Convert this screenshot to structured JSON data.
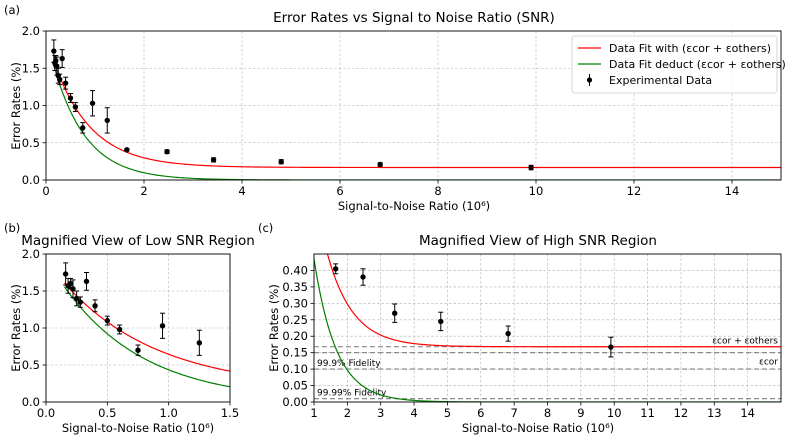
{
  "chart_data": [
    {
      "type": "line",
      "panel_label": "(a)",
      "title": "Error Rates vs Signal to Noise Ratio (SNR)",
      "xlabel": "Signal-to-Noise Ratio (10⁶)",
      "ylabel": "Error Rates (%)",
      "xlim": [
        0,
        15
      ],
      "ylim": [
        0,
        2.0
      ],
      "xticks": [
        0,
        2,
        4,
        6,
        8,
        10,
        12,
        14
      ],
      "xtick_labels": [
        "0",
        "2",
        "4",
        "6",
        "8",
        "10",
        "12",
        "14"
      ],
      "yticks": [
        0.0,
        0.5,
        1.0,
        1.5,
        2.0
      ],
      "ytick_labels": [
        "0.0",
        "0.5",
        "1.0",
        "1.5",
        "2.0"
      ],
      "grid": true,
      "legend_position": "top-right",
      "legend": [
        {
          "label": "Data Fit with (εcor + εothers)",
          "color": "#ff0000",
          "kind": "line"
        },
        {
          "label": "Data Fit deduct (εcor + εothers)",
          "color": "#008000",
          "kind": "line"
        },
        {
          "label": "Experimental Data",
          "color": "#000000",
          "kind": "errorbar"
        }
      ]
    },
    {
      "type": "line",
      "panel_label": "(b)",
      "title": "Magnified View of Low SNR Region",
      "xlabel": "Signal-to-Noise Ratio (10⁶)",
      "ylabel": "Error Rates (%)",
      "xlim": [
        0,
        1.5
      ],
      "ylim": [
        0,
        2.0
      ],
      "xticks": [
        0,
        0.5,
        1.0,
        1.5
      ],
      "xtick_labels": [
        "0.0",
        "0.5",
        "1.0",
        "1.5"
      ],
      "yticks": [
        0.0,
        0.5,
        1.0,
        1.5,
        2.0
      ],
      "ytick_labels": [
        "0.0",
        "0.5",
        "1.0",
        "1.5",
        "2.0"
      ],
      "grid": true
    },
    {
      "type": "line",
      "panel_label": "(c)",
      "title": "Magnified View of High SNR Region",
      "xlabel": "Signal-to-Noise Ratio (10⁶)",
      "ylabel": "Error Rates (%)",
      "xlim": [
        1,
        15
      ],
      "ylim": [
        0,
        0.45
      ],
      "xticks": [
        1,
        2,
        3,
        4,
        5,
        6,
        7,
        8,
        9,
        10,
        11,
        12,
        13,
        14
      ],
      "xtick_labels": [
        "1",
        "2",
        "3",
        "4",
        "5",
        "6",
        "7",
        "8",
        "9",
        "10",
        "11",
        "12",
        "13",
        "14"
      ],
      "yticks": [
        0.0,
        0.05,
        0.1,
        0.15,
        0.2,
        0.25,
        0.3,
        0.35,
        0.4
      ],
      "ytick_labels": [
        "0.00",
        "0.05",
        "0.10",
        "0.15",
        "0.20",
        "0.25",
        "0.30",
        "0.35",
        "0.40"
      ],
      "grid": true,
      "hlines": [
        {
          "y": 0.168,
          "label": "εcor + εothers",
          "label_align": "right"
        },
        {
          "y": 0.15,
          "label": "εcor",
          "label_align": "right"
        },
        {
          "y": 0.1,
          "label": "99.9% Fidelity",
          "label_align": "left"
        },
        {
          "y": 0.01,
          "label": "99.99% Fidelity",
          "label_align": "left"
        }
      ]
    }
  ],
  "shared": {
    "experimental": {
      "x": [
        0.16,
        0.18,
        0.2,
        0.22,
        0.25,
        0.28,
        0.33,
        0.4,
        0.5,
        0.6,
        0.75,
        0.95,
        1.25,
        1.65,
        2.47,
        3.42,
        4.8,
        6.82,
        9.9
      ],
      "y": [
        1.73,
        1.57,
        1.6,
        1.53,
        1.4,
        1.35,
        1.63,
        1.3,
        1.1,
        0.98,
        0.7,
        1.03,
        0.8,
        0.405,
        0.38,
        0.27,
        0.245,
        0.208,
        0.167
      ],
      "err": [
        0.15,
        0.1,
        0.07,
        0.12,
        0.1,
        0.07,
        0.12,
        0.08,
        0.06,
        0.06,
        0.07,
        0.17,
        0.17,
        0.015,
        0.025,
        0.028,
        0.028,
        0.023,
        0.03
      ]
    },
    "fit_with_offset": {
      "amplitude": 1.75,
      "rate": 1.3,
      "offset": 0.168,
      "color": "#ff0000"
    },
    "fit_deducted": {
      "amplitude": 1.95,
      "rate": 1.5,
      "offset": 0.0,
      "color": "#008000"
    }
  }
}
